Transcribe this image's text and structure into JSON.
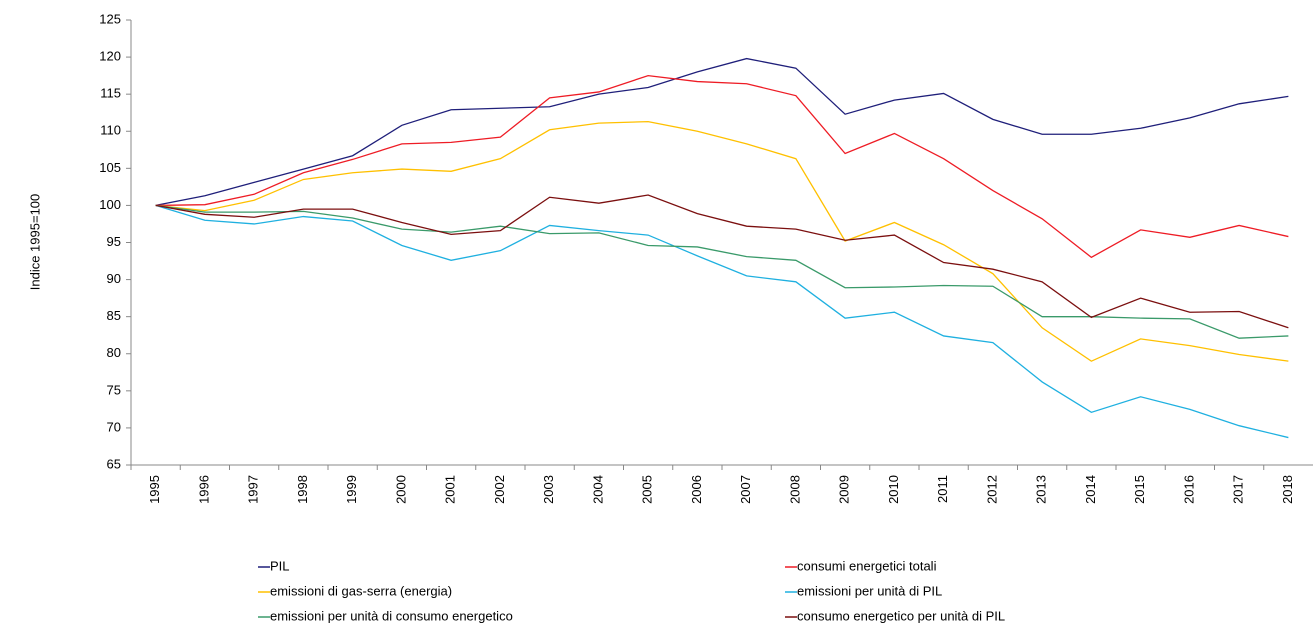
{
  "chart_data": {
    "type": "line",
    "y_label": "Indice 1995=100",
    "categories": [
      "1995",
      "1996",
      "1997",
      "1998",
      "1999",
      "2000",
      "2001",
      "2002",
      "2003",
      "2004",
      "2005",
      "2006",
      "2007",
      "2008",
      "2009",
      "2010",
      "2011",
      "2012",
      "2013",
      "2014",
      "2015",
      "2016",
      "2017",
      "2018"
    ],
    "series": [
      {
        "name": "PIL",
        "color": "#1f1f7a",
        "values": [
          100,
          101.3,
          103.1,
          104.9,
          106.7,
          110.8,
          112.9,
          113.1,
          113.3,
          115,
          115.9,
          118,
          119.8,
          118.5,
          112.3,
          114.2,
          115.1,
          111.6,
          109.6,
          109.6,
          110.4,
          111.8,
          113.7,
          114.7
        ]
      },
      {
        "name": "consumi energetici totali",
        "color": "#ee1c25",
        "values": [
          100,
          100.1,
          101.5,
          104.4,
          106.2,
          108.3,
          108.5,
          109.2,
          114.5,
          115.3,
          117.5,
          116.7,
          116.4,
          114.8,
          107,
          109.7,
          106.3,
          102,
          98.2,
          93,
          96.7,
          95.7,
          97.3,
          95.8
        ]
      },
      {
        "name": "emissioni di gas-serra (energia)",
        "color": "#ffc000",
        "values": [
          100,
          99.3,
          100.7,
          103.5,
          104.4,
          104.9,
          104.6,
          106.3,
          110.2,
          111.1,
          111.3,
          110,
          108.3,
          106.3,
          95.2,
          97.7,
          94.7,
          90.8,
          83.5,
          79,
          82,
          81.1,
          79.9,
          79
        ]
      },
      {
        "name": "emissioni per unità di PIL",
        "color": "#1fb0e0",
        "values": [
          100,
          98,
          97.5,
          98.5,
          97.9,
          94.6,
          92.6,
          93.9,
          97.3,
          96.6,
          96,
          93.2,
          90.5,
          89.7,
          84.8,
          85.6,
          82.4,
          81.5,
          76.2,
          72.1,
          74.2,
          72.5,
          70.3,
          68.7
        ]
      },
      {
        "name": "emissioni per unità di consumo energetico",
        "color": "#3a9a6a",
        "values": [
          100,
          99.1,
          99.1,
          99.2,
          98.3,
          96.8,
          96.4,
          97.2,
          96.2,
          96.3,
          94.6,
          94.4,
          93.1,
          92.6,
          88.9,
          89,
          89.2,
          89.1,
          85,
          85,
          84.8,
          84.7,
          82.1,
          82.4
        ]
      },
      {
        "name": "consumo energetico per unità di PIL",
        "color": "#7b0f0f",
        "values": [
          100,
          98.8,
          98.4,
          99.5,
          99.5,
          97.7,
          96.1,
          96.6,
          101.1,
          100.3,
          101.4,
          98.9,
          97.2,
          96.8,
          95.3,
          96,
          92.3,
          91.4,
          89.7,
          84.9,
          87.5,
          85.6,
          85.7,
          83.5
        ]
      }
    ],
    "ylim": [
      65,
      125
    ],
    "yticks": [
      65,
      70,
      75,
      80,
      85,
      90,
      95,
      100,
      105,
      110,
      115,
      120,
      125
    ],
    "grid": false
  }
}
